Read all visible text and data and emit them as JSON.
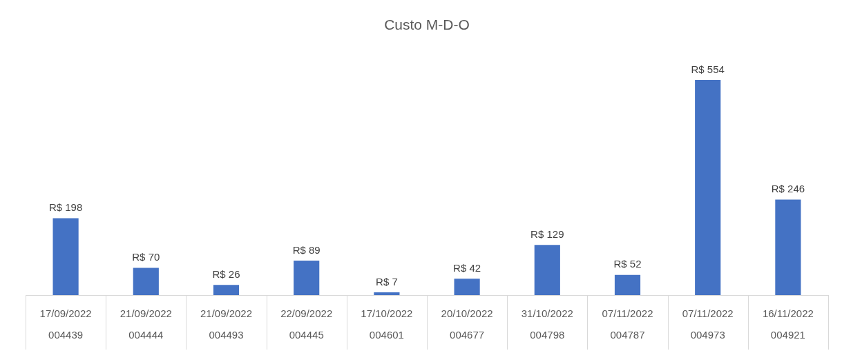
{
  "chart_data": {
    "type": "bar",
    "title": "Custo M-D-O",
    "categories": [
      "17/09/2022\n004439",
      "21/09/2022\n004444",
      "21/09/2022\n004493",
      "22/09/2022\n004445",
      "17/10/2022\n004601",
      "20/10/2022\n004677",
      "31/10/2022\n004798",
      "07/11/2022\n004787",
      "07/11/2022\n004973",
      "16/11/2022\n004921"
    ],
    "values": [
      198,
      70,
      26,
      89,
      7,
      42,
      129,
      52,
      554,
      246
    ],
    "value_labels": [
      "R$ 198",
      "R$ 70",
      "R$ 26",
      "R$ 89",
      "R$ 7",
      "R$ 42",
      "R$ 129",
      "R$ 52",
      "R$ 554",
      "R$ 246"
    ],
    "color": "#4472c4",
    "legend": false,
    "grid": false
  }
}
